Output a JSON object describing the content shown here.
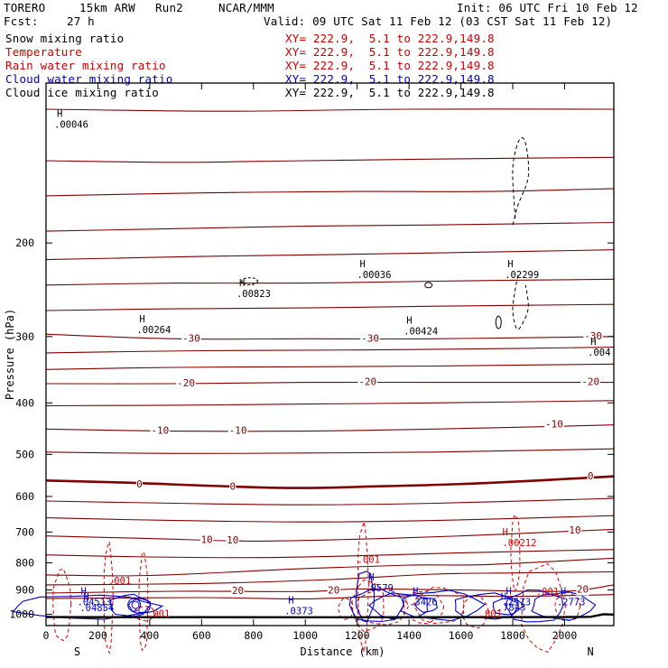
{
  "header": {
    "model": "TORERO",
    "resolution": "15km ARW",
    "run": "Run2",
    "org": "NCAR/MMM",
    "init": "Init: 06 UTC Fri 10 Feb 12",
    "fcst_label": "Fcst:",
    "fcst_value": "27 h",
    "valid": "Valid: 09 UTC Sat 11 Feb 12 (03 CST Sat 11 Feb 12)"
  },
  "legend": [
    {
      "label": "Snow mixing ratio",
      "xy": "XY= 222.9,  5.1 to 222.9,149.8",
      "color": "#000000"
    },
    {
      "label": "Temperature",
      "xy": "XY= 222.9,  5.1 to 222.9,149.8",
      "color": "#cc0000"
    },
    {
      "label": "Rain water mixing ratio",
      "xy": "XY= 222.9,  5.1 to 222.9,149.8",
      "color": "#cc0000"
    },
    {
      "label": "Cloud water mixing ratio",
      "xy": "XY= 222.9,  5.1 to 222.9,149.8",
      "color": "#0000cc"
    },
    {
      "label": "Cloud ice mixing ratio",
      "xy": "XY= 222.9,  5.1 to 222.9,149.8",
      "color": "#000000"
    }
  ],
  "chart_data": {
    "type": "cross-section",
    "xlabel": "Distance (km)",
    "ylabel": "Pressure (hPa)",
    "xlim": [
      0,
      2190
    ],
    "ylim": [
      1050,
      100
    ],
    "x_ticks": [
      0,
      200,
      400,
      600,
      800,
      1000,
      1200,
      1400,
      1600,
      1800,
      2000
    ],
    "y_ticks": [
      200,
      300,
      400,
      500,
      600,
      700,
      800,
      900,
      1000
    ],
    "endpoints": {
      "left": "S",
      "right": "N"
    },
    "colors": {
      "temp": "#800000",
      "rain": "#dd0000",
      "cloud_water": "#0000cc",
      "ice": "#000000",
      "ground": "#000000"
    },
    "temperature_isotherms": [
      {
        "temp": -50,
        "points": [
          [
            0,
            112
          ],
          [
            700,
            113
          ],
          [
            1400,
            112
          ],
          [
            2190,
            112
          ]
        ]
      },
      {
        "temp": -50,
        "points": [
          [
            0,
            140
          ],
          [
            500,
            141
          ],
          [
            1000,
            140
          ],
          [
            1500,
            139
          ],
          [
            2190,
            138
          ]
        ]
      },
      {
        "temp": -45,
        "points": [
          [
            0,
            163
          ],
          [
            600,
            161
          ],
          [
            1200,
            160
          ],
          [
            1700,
            160
          ],
          [
            2190,
            158
          ]
        ]
      },
      {
        "temp": -45,
        "points": [
          [
            0,
            190
          ],
          [
            500,
            188
          ],
          [
            1000,
            186
          ],
          [
            1500,
            185
          ],
          [
            2190,
            183
          ]
        ]
      },
      {
        "temp": -40,
        "points": [
          [
            0,
            215
          ],
          [
            600,
            212
          ],
          [
            1200,
            210
          ],
          [
            1700,
            208
          ],
          [
            2190,
            206
          ]
        ]
      },
      {
        "temp": -35,
        "points": [
          [
            0,
            240
          ],
          [
            500,
            238
          ],
          [
            1000,
            238
          ],
          [
            1500,
            236
          ],
          [
            2190,
            234
          ]
        ]
      },
      {
        "temp": -30,
        "points": [
          [
            0,
            268
          ],
          [
            500,
            266
          ],
          [
            1000,
            265
          ],
          [
            1500,
            263
          ],
          [
            2190,
            261
          ]
        ]
      },
      {
        "temp": -30,
        "points": [
          [
            0,
            297
          ],
          [
            500,
            303
          ],
          [
            1000,
            303
          ],
          [
            1500,
            303
          ],
          [
            2190,
            300
          ]
        ]
      },
      {
        "temp": -25,
        "points": [
          [
            0,
            322
          ],
          [
            600,
            319
          ],
          [
            1200,
            318
          ],
          [
            1800,
            316
          ],
          [
            2190,
            314
          ]
        ]
      },
      {
        "temp": -25,
        "points": [
          [
            0,
            346
          ],
          [
            500,
            343
          ],
          [
            1000,
            342
          ],
          [
            1500,
            341
          ],
          [
            2190,
            338
          ]
        ]
      },
      {
        "temp": -20,
        "points": [
          [
            0,
            368
          ],
          [
            500,
            368
          ],
          [
            1000,
            366
          ],
          [
            1500,
            366
          ],
          [
            2190,
            366
          ]
        ]
      },
      {
        "temp": -15,
        "points": [
          [
            0,
            405
          ],
          [
            500,
            404
          ],
          [
            1000,
            402
          ],
          [
            1500,
            400
          ],
          [
            2190,
            396
          ]
        ]
      },
      {
        "temp": -10,
        "points": [
          [
            0,
            448
          ],
          [
            500,
            452
          ],
          [
            1000,
            452
          ],
          [
            1500,
            448
          ],
          [
            2190,
            440
          ]
        ]
      },
      {
        "temp": -5,
        "points": [
          [
            0,
            495
          ],
          [
            500,
            498
          ],
          [
            1000,
            497
          ],
          [
            1500,
            495
          ],
          [
            2190,
            488
          ]
        ]
      },
      {
        "temp": 0,
        "points": [
          [
            0,
            560
          ],
          [
            300,
            565
          ],
          [
            900,
            578
          ],
          [
            1300,
            574
          ],
          [
            1700,
            566
          ],
          [
            2190,
            550
          ]
        ]
      },
      {
        "temp": 5,
        "points": [
          [
            0,
            612
          ],
          [
            500,
            618
          ],
          [
            1000,
            622
          ],
          [
            1500,
            618
          ],
          [
            2190,
            605
          ]
        ]
      },
      {
        "temp": 5,
        "points": [
          [
            0,
            658
          ],
          [
            500,
            666
          ],
          [
            1000,
            670
          ],
          [
            1500,
            666
          ],
          [
            2190,
            652
          ]
        ]
      },
      {
        "temp": 10,
        "points": [
          [
            0,
            712
          ],
          [
            400,
            720
          ],
          [
            800,
            728
          ],
          [
            1200,
            722
          ],
          [
            1600,
            712
          ],
          [
            2190,
            692
          ]
        ]
      },
      {
        "temp": 10,
        "points": [
          [
            0,
            773
          ],
          [
            400,
            780
          ],
          [
            800,
            782
          ],
          [
            1200,
            776
          ],
          [
            1600,
            766
          ],
          [
            2190,
            755
          ]
        ]
      },
      {
        "temp": 15,
        "points": [
          [
            0,
            843
          ],
          [
            400,
            845
          ],
          [
            1000,
            820
          ],
          [
            1400,
            808
          ],
          [
            1700,
            806
          ],
          [
            2190,
            784
          ]
        ]
      },
      {
        "temp": 15,
        "points": [
          [
            0,
            880
          ],
          [
            600,
            875
          ],
          [
            1100,
            860
          ],
          [
            1500,
            840
          ],
          [
            1800,
            836
          ],
          [
            2190,
            832
          ]
        ]
      },
      {
        "temp": 20,
        "points": [
          [
            0,
            912
          ],
          [
            500,
            905
          ],
          [
            1000,
            906
          ],
          [
            1200,
            896
          ],
          [
            1600,
            900
          ],
          [
            2000,
            905
          ],
          [
            2190,
            880
          ]
        ]
      },
      {
        "temp": 20,
        "points": [
          [
            0,
            934
          ],
          [
            600,
            930
          ],
          [
            1000,
            935
          ],
          [
            1400,
            922
          ],
          [
            1800,
            925
          ],
          [
            2190,
            918
          ]
        ]
      }
    ],
    "temperature_labels": [
      {
        "text": "-30",
        "x": 560,
        "p": 303
      },
      {
        "text": "-30",
        "x": 1250,
        "p": 303
      },
      {
        "text": "-30",
        "x": 2110,
        "p": 300
      },
      {
        "text": "-20",
        "x": 540,
        "p": 368
      },
      {
        "text": "-20",
        "x": 1240,
        "p": 366
      },
      {
        "text": "-20",
        "x": 2100,
        "p": 366
      },
      {
        "text": "-10",
        "x": 440,
        "p": 452
      },
      {
        "text": "-10",
        "x": 740,
        "p": 452
      },
      {
        "text": "-10",
        "x": 1960,
        "p": 440
      },
      {
        "text": "0",
        "x": 360,
        "p": 570
      },
      {
        "text": "0",
        "x": 720,
        "p": 576
      },
      {
        "text": "0",
        "x": 2100,
        "p": 551
      },
      {
        "text": "10",
        "x": 620,
        "p": 726
      },
      {
        "text": "10",
        "x": 720,
        "p": 727
      },
      {
        "text": "10",
        "x": 2040,
        "p": 696
      },
      {
        "text": "20",
        "x": 740,
        "p": 905
      },
      {
        "text": "20",
        "x": 1110,
        "p": 904
      },
      {
        "text": "20",
        "x": 2070,
        "p": 900
      }
    ],
    "ground": [
      [
        0,
        1012
      ],
      [
        1000,
        1013
      ],
      [
        2000,
        1012
      ],
      [
        2100,
        1011
      ],
      [
        2150,
        1000
      ],
      [
        2190,
        1001
      ]
    ],
    "ice_mixing_ratio_maxima": [
      {
        "text": ".00046",
        "x": 0,
        "p": 120
      },
      {
        "text": ".00823",
        "x": 745,
        "p": 250
      },
      {
        "text": ".00036",
        "x": 1210,
        "p": 230
      },
      {
        "text": ".00264",
        "x": 360,
        "p": 292
      },
      {
        "text": ".00424",
        "x": 1390,
        "p": 294
      },
      {
        "text": ".02299",
        "x": 1780,
        "p": 230
      },
      {
        "text": ".004",
        "x": 2100,
        "p": 322
      }
    ],
    "rain_mixing_ratio_maxima": [
      {
        "text": ".001",
        "x": 240,
        "p": 874
      },
      {
        "text": ".001",
        "x": 1200,
        "p": 797
      },
      {
        "text": ".00212",
        "x": 1760,
        "p": 741
      },
      {
        "text": ".001",
        "x": 1890,
        "p": 915
      },
      {
        "text": ".001",
        "x": 390,
        "p": 1008
      },
      {
        "text": ".001",
        "x": 1670,
        "p": 1008
      }
    ],
    "cloud_water_maxima": [
      {
        "text": ".04513",
        "x": 120,
        "p": 962
      },
      {
        "text": ".04854",
        "x": 130,
        "p": 987
      },
      {
        "text": ".0373",
        "x": 920,
        "p": 1000
      },
      {
        "text": ".9579",
        "x": 1230,
        "p": 905
      },
      {
        "text": ".3426",
        "x": 1400,
        "p": 962
      },
      {
        "text": ".2573",
        "x": 1760,
        "p": 962
      },
      {
        "text": ".7843",
        "x": 1740,
        "p": 984
      },
      {
        "text": ".2773",
        "x": 1970,
        "p": 962
      }
    ]
  }
}
